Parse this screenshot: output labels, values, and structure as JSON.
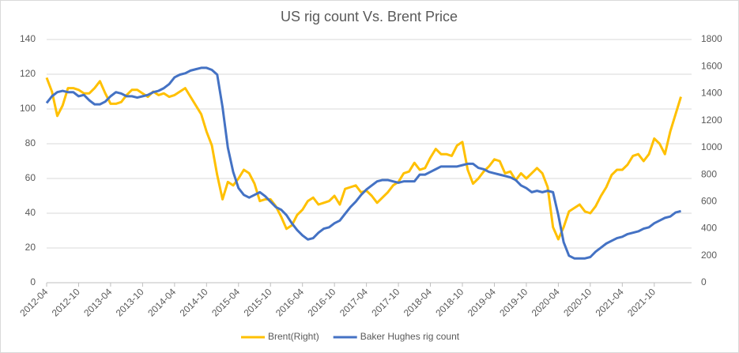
{
  "chart_data": {
    "type": "line",
    "title": "US rig count Vs. Brent Price",
    "categories": [
      "2012-04",
      null,
      null,
      null,
      null,
      null,
      "2012-10",
      null,
      null,
      null,
      null,
      null,
      "2013-04",
      null,
      null,
      null,
      null,
      null,
      "2013-10",
      null,
      null,
      null,
      null,
      null,
      "2014-04",
      null,
      null,
      null,
      null,
      null,
      "2014-10",
      null,
      null,
      null,
      null,
      null,
      "2015-04",
      null,
      null,
      null,
      null,
      null,
      "2015-10",
      null,
      null,
      null,
      null,
      null,
      "2016-04",
      null,
      null,
      null,
      null,
      null,
      "2016-10",
      null,
      null,
      null,
      null,
      null,
      "2017-04",
      null,
      null,
      null,
      null,
      null,
      "2017-10",
      null,
      null,
      null,
      null,
      null,
      "2018-04",
      null,
      null,
      null,
      null,
      null,
      "2018-10",
      null,
      null,
      null,
      null,
      null,
      "2019-04",
      null,
      null,
      null,
      null,
      null,
      "2019-10",
      null,
      null,
      null,
      null,
      null,
      "2020-04",
      null,
      null,
      null,
      null,
      null,
      "2020-10",
      null,
      null,
      null,
      null,
      null,
      "2021-04",
      null,
      null,
      null,
      null,
      null,
      "2021-10",
      null,
      null,
      null,
      null,
      null
    ],
    "series": [
      {
        "name": "Brent(Right)",
        "color": "#ffc000",
        "axis": "y",
        "values": [
          118,
          110,
          96,
          102,
          112,
          112,
          111,
          109,
          109,
          112,
          116,
          109,
          103,
          103,
          104,
          108,
          111,
          111,
          109,
          107,
          110,
          108,
          109,
          107,
          108,
          110,
          112,
          107,
          102,
          97,
          87,
          79,
          62,
          48,
          58,
          56,
          60,
          65,
          63,
          57,
          47,
          48,
          48,
          44,
          38,
          31,
          33,
          39,
          42,
          47,
          49,
          45,
          46,
          47,
          50,
          45,
          54,
          55,
          56,
          52,
          53,
          50,
          46,
          49,
          52,
          56,
          58,
          63,
          64,
          69,
          65,
          66,
          72,
          77,
          74,
          74,
          73,
          79,
          81,
          65,
          57,
          60,
          64,
          67,
          71,
          70,
          63,
          64,
          59,
          63,
          60,
          63,
          66,
          63,
          55,
          32,
          25,
          32,
          41,
          43,
          45,
          41,
          40,
          44,
          50,
          55,
          62,
          65,
          65,
          68,
          73,
          74,
          70,
          74,
          83,
          80,
          74,
          87,
          97,
          107
        ]
      },
      {
        "name": "Baker Hughes rig count",
        "color": "#4472c4",
        "axis": "y2",
        "values": [
          1330,
          1380,
          1410,
          1420,
          1410,
          1410,
          1380,
          1390,
          1350,
          1320,
          1320,
          1340,
          1380,
          1410,
          1400,
          1380,
          1380,
          1370,
          1380,
          1390,
          1410,
          1420,
          1440,
          1470,
          1520,
          1540,
          1550,
          1570,
          1580,
          1590,
          1590,
          1575,
          1540,
          1300,
          1000,
          820,
          700,
          650,
          630,
          650,
          670,
          640,
          600,
          560,
          540,
          500,
          440,
          390,
          350,
          320,
          330,
          370,
          400,
          410,
          440,
          460,
          510,
          560,
          600,
          650,
          690,
          720,
          750,
          760,
          760,
          750,
          740,
          750,
          750,
          750,
          800,
          800,
          820,
          840,
          860,
          860,
          860,
          860,
          870,
          880,
          880,
          850,
          840,
          820,
          810,
          800,
          790,
          780,
          760,
          720,
          700,
          670,
          680,
          670,
          680,
          670,
          500,
          300,
          200,
          180,
          180,
          180,
          190,
          230,
          260,
          290,
          310,
          330,
          340,
          360,
          370,
          380,
          400,
          410,
          440,
          460,
          480,
          490,
          520,
          530
        ]
      }
    ],
    "ylim": [
      0,
      140
    ],
    "yticks": [
      0,
      20,
      40,
      60,
      80,
      100,
      120,
      140
    ],
    "y2lim": [
      0,
      1800
    ],
    "y2ticks": [
      0,
      200,
      400,
      600,
      800,
      1000,
      1200,
      1400,
      1600,
      1800
    ],
    "grid": true
  }
}
